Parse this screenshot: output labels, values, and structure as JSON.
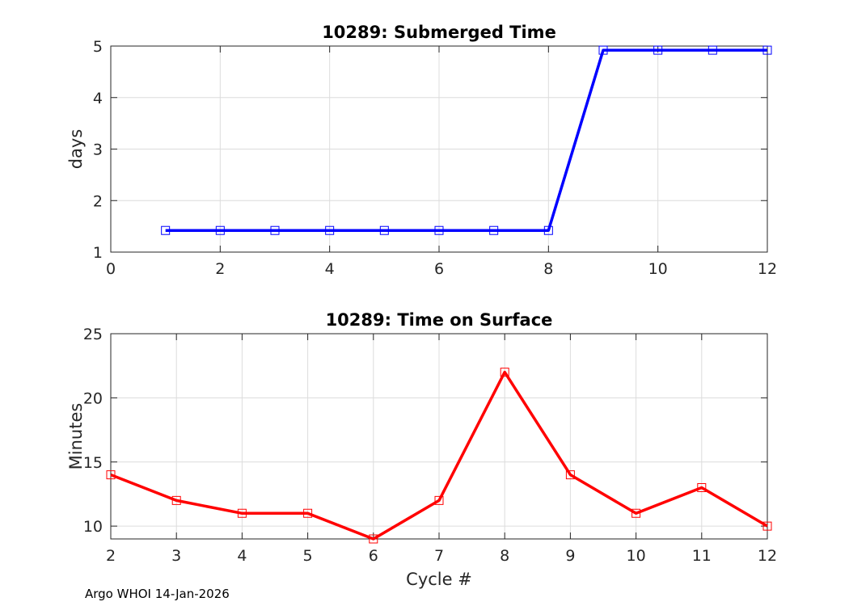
{
  "footer": "Argo WHOI 14-Jan-2026",
  "chart_data": [
    {
      "type": "line",
      "title": "10289: Submerged Time",
      "xlabel": "",
      "ylabel": "days",
      "xlim": [
        0,
        12
      ],
      "ylim": [
        1,
        5
      ],
      "xticks": [
        0,
        2,
        4,
        6,
        8,
        10,
        12
      ],
      "yticks": [
        1,
        2,
        3,
        4,
        5
      ],
      "grid": true,
      "legend": "none",
      "marker": "square",
      "color": "#0000ff",
      "series": [
        {
          "x": [
            1,
            2,
            3,
            4,
            5,
            6,
            7,
            8,
            9,
            10,
            11,
            12
          ],
          "y": [
            1.42,
            1.42,
            1.42,
            1.42,
            1.42,
            1.42,
            1.42,
            1.42,
            4.92,
            4.92,
            4.92,
            4.92
          ]
        }
      ]
    },
    {
      "type": "line",
      "title": "10289: Time on Surface",
      "xlabel": "Cycle #",
      "ylabel": "Minutes",
      "xlim": [
        2,
        12
      ],
      "ylim": [
        9,
        25
      ],
      "xticks": [
        2,
        3,
        4,
        5,
        6,
        7,
        8,
        9,
        10,
        11,
        12
      ],
      "yticks": [
        10,
        15,
        20,
        25
      ],
      "grid": true,
      "legend": "none",
      "marker": "square",
      "color": "#ff0000",
      "series": [
        {
          "x": [
            2,
            3,
            4,
            5,
            6,
            7,
            8,
            9,
            10,
            11,
            12
          ],
          "y": [
            14,
            12,
            11,
            11,
            9,
            12,
            22,
            14,
            11,
            13,
            10
          ]
        }
      ]
    }
  ]
}
